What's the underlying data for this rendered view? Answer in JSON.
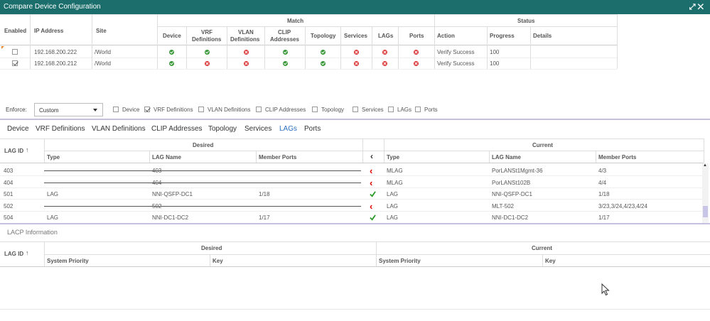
{
  "window": {
    "title": "Compare Device Configuration"
  },
  "top_table": {
    "headers": {
      "enabled": "Enabled",
      "ip": "IP Address",
      "site": "Site",
      "match": "Match",
      "status": "Status",
      "device": "Device",
      "vrf1": "VRF",
      "vrf2": "Definitions",
      "vlan1": "VLAN",
      "vlan2": "Definitions",
      "clip1": "CLIP",
      "clip2": "Addresses",
      "topology": "Topology",
      "services": "Services",
      "lags": "LAGs",
      "ports": "Ports",
      "action": "Action",
      "progress": "Progress",
      "details": "Details"
    },
    "rows": [
      {
        "enabled": false,
        "ip": "192.168.200.222",
        "site": "/World",
        "match": [
          "ok",
          "ok",
          "bad",
          "ok",
          "ok",
          "bad",
          "bad",
          "bad"
        ],
        "action": "Verify Success",
        "progress": "100"
      },
      {
        "enabled": true,
        "ip": "192.168.200.212",
        "site": "/World",
        "match": [
          "ok",
          "bad",
          "bad",
          "ok",
          "ok",
          "bad",
          "bad",
          "bad"
        ],
        "action": "Verify Success",
        "progress": "100"
      }
    ]
  },
  "enforce": {
    "label": "Enforce:",
    "value": "Custom",
    "options": [
      {
        "label": "Device",
        "checked": false
      },
      {
        "label": "VRF Definitions",
        "checked": true
      },
      {
        "label": "VLAN Definitions",
        "checked": false
      },
      {
        "label": "CLIP Addresses",
        "checked": false
      },
      {
        "label": "Topology",
        "checked": false
      },
      {
        "label": "Services",
        "checked": false
      },
      {
        "label": "LAGs",
        "checked": false
      },
      {
        "label": "Ports",
        "checked": false
      }
    ]
  },
  "tabs": [
    "Device",
    "VRF Definitions",
    "VLAN Definitions",
    "CLIP Addresses",
    "Topology",
    "Services",
    "LAGs",
    "Ports"
  ],
  "active_tab": "LAGs",
  "lag_table": {
    "headers": {
      "lag_id": "LAG ID",
      "desired": "Desired",
      "current": "Current",
      "type": "Type",
      "lag_name": "LAG Name",
      "member_ports": "Member Ports"
    },
    "rows": [
      {
        "id": "403",
        "d_type": "",
        "d_name": "403",
        "d_ports": "",
        "status": "arrow",
        "c_type": "MLAG",
        "c_name": "PorLANSt1Mgmt-36",
        "c_ports": "4/3"
      },
      {
        "id": "404",
        "d_type": "",
        "d_name": "404",
        "d_ports": "",
        "status": "arrow",
        "c_type": "MLAG",
        "c_name": "PorLANSt102B",
        "c_ports": "4/4"
      },
      {
        "id": "501",
        "d_type": "LAG",
        "d_name": "NNI-QSFP-DC1",
        "d_ports": "1/18",
        "status": "check",
        "c_type": "LAG",
        "c_name": "NNI-QSFP-DC1",
        "c_ports": "1/18"
      },
      {
        "id": "502",
        "d_type": "",
        "d_name": "502",
        "d_ports": "",
        "status": "arrow",
        "c_type": "LAG",
        "c_name": "MLT-502",
        "c_ports": "3/23,3/24,4/23,4/24"
      },
      {
        "id": "504",
        "d_type": "LAG",
        "d_name": "NNI-DC1-DC2",
        "d_ports": "1/17",
        "status": "check",
        "c_type": "LAG",
        "c_name": "NNI-DC1-DC2",
        "c_ports": "1/17"
      }
    ]
  },
  "lacp": {
    "title": "LACP Information",
    "headers": {
      "lag_id": "LAG ID",
      "desired": "Desired",
      "current": "Current",
      "sys_priority": "System Priority",
      "key": "Key"
    }
  },
  "colors": {
    "titlebar": "#1b6e6c",
    "ok": "#3a9a3a",
    "bad": "#dd3333",
    "active_tab": "#2a6fbf"
  }
}
